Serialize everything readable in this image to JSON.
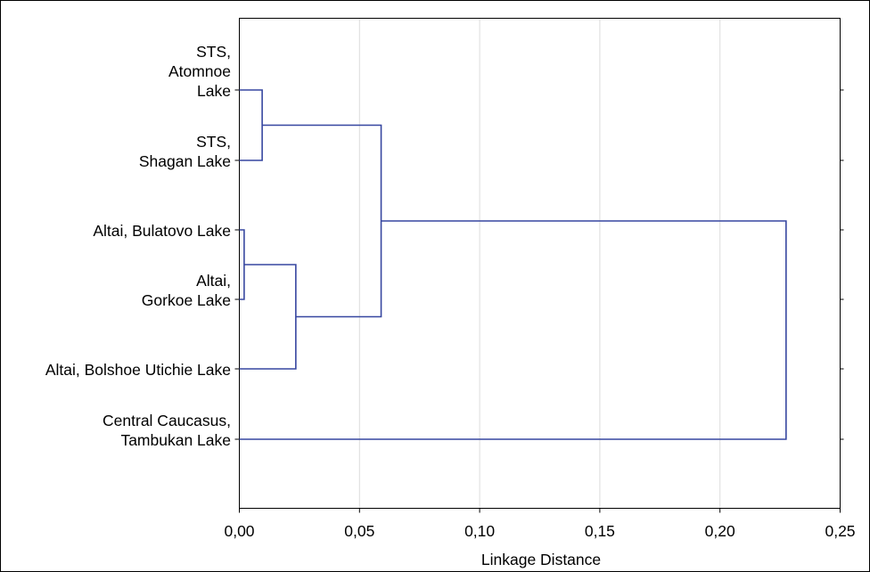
{
  "chart_data": {
    "type": "dendrogram",
    "orientation": "horizontal",
    "xlabel": "Linkage Distance",
    "xlim": [
      0,
      0.25
    ],
    "x_ticks": [
      0,
      0.05,
      0.1,
      0.15,
      0.2,
      0.25
    ],
    "x_tick_labels": [
      "0,00",
      "0,05",
      "0,10",
      "0,15",
      "0,20",
      "0,25"
    ],
    "grid": "vertical",
    "leaves": [
      {
        "id": "L1",
        "lines": [
          "STS,",
          "Atomnoe",
          "Lake"
        ]
      },
      {
        "id": "L2",
        "lines": [
          "STS,",
          "Shagan Lake"
        ]
      },
      {
        "id": "L3",
        "lines": [
          "Altai, Bulatovo Lake"
        ]
      },
      {
        "id": "L4",
        "lines": [
          "Altai,",
          "Gorkoe Lake"
        ]
      },
      {
        "id": "L5",
        "lines": [
          "Altai, Bolshoe Utichie Lake"
        ]
      },
      {
        "id": "L6",
        "lines": [
          "Central Caucasus,",
          "Tambukan Lake"
        ]
      }
    ],
    "merges": [
      {
        "a": "L3",
        "b": "L4",
        "distance": 0.002,
        "id": "C1"
      },
      {
        "a": "L1",
        "b": "L2",
        "distance": 0.0095,
        "id": "C2"
      },
      {
        "a": "C1",
        "b": "L5",
        "distance": 0.0235,
        "id": "C3"
      },
      {
        "a": "C2",
        "b": "C3",
        "distance": 0.059,
        "id": "C4"
      },
      {
        "a": "C4",
        "b": "L6",
        "distance": 0.2275,
        "id": "C5"
      }
    ],
    "colors": {
      "tree": "#3747a0",
      "grid": "#dcdcdc",
      "axis": "#000000"
    }
  }
}
